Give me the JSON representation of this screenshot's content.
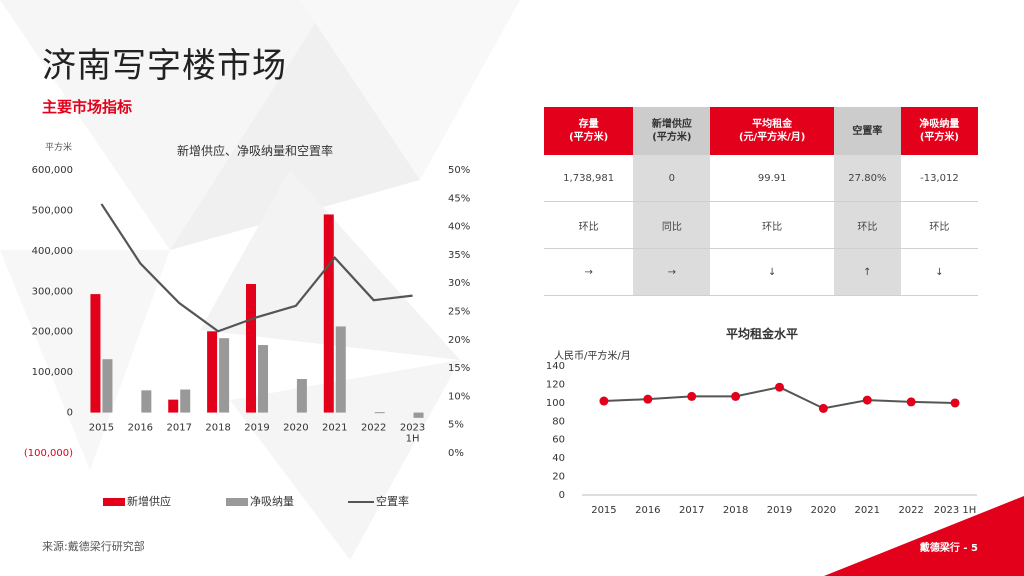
{
  "page": {
    "title": "济南写字楼市场",
    "subtitle": "主要市场指标",
    "source": "来源:戴德梁行研究部",
    "page_number": "戴德梁行 - 5"
  },
  "colors": {
    "accent": "#e2001a",
    "grey": "#999999",
    "line": "#555555",
    "header_grey": "#cccccc"
  },
  "kpi_table": {
    "headers": [
      {
        "label": "存量",
        "unit": "(平方米)",
        "style": "red"
      },
      {
        "label": "新增供应",
        "unit": "(平方米)",
        "style": "grey"
      },
      {
        "label": "平均租金",
        "unit": "(元/平方米/月)",
        "style": "red"
      },
      {
        "label": "空置率",
        "unit": "",
        "style": "grey"
      },
      {
        "label": "净吸纳量",
        "unit": "(平方米)",
        "style": "red"
      }
    ],
    "values": [
      "1,738,981",
      "0",
      "99.91",
      "27.80%",
      "-13,012"
    ],
    "comparisons": [
      "环比",
      "同比",
      "环比",
      "环比",
      "环比"
    ],
    "trends": [
      "→",
      "→",
      "↓",
      "↑",
      "↓"
    ]
  },
  "chart_data": [
    {
      "type": "bar",
      "title": "新增供应、净吸纳量和空置率",
      "ylabel": "平方米",
      "categories": [
        "2015",
        "2016",
        "2017",
        "2018",
        "2019",
        "2020",
        "2021",
        "2022",
        "2023 1H"
      ],
      "category_lines": [
        [
          "2015"
        ],
        [
          "2016"
        ],
        [
          "2017"
        ],
        [
          "2018"
        ],
        [
          "2019"
        ],
        [
          "2020"
        ],
        [
          "2021"
        ],
        [
          "2022"
        ],
        [
          "2023",
          "1H"
        ]
      ],
      "series": [
        {
          "name": "新增供应",
          "kind": "bar",
          "color": "#e2001a",
          "values": [
            293000,
            0,
            32000,
            201000,
            318000,
            0,
            490000,
            0,
            0
          ]
        },
        {
          "name": "净吸纳量",
          "kind": "bar",
          "color": "#999999",
          "values": [
            132000,
            55000,
            57000,
            184000,
            167000,
            83000,
            213000,
            1000,
            -13012
          ]
        },
        {
          "name": "空置率",
          "kind": "line",
          "axis": "right",
          "color": "#555555",
          "values": [
            44,
            33.5,
            26.5,
            21.5,
            24,
            26,
            34.5,
            27,
            27.8
          ]
        }
      ],
      "ylim": [
        -100000,
        600000
      ],
      "y_ticks": [
        "600,000",
        "500,000",
        "400,000",
        "300,000",
        "200,000",
        "100,000",
        "0",
        "(100,000)"
      ],
      "y_tick_values": [
        600000,
        500000,
        400000,
        300000,
        200000,
        100000,
        0,
        -100000
      ],
      "y2lim": [
        0,
        50
      ],
      "y2_ticks": [
        "50%",
        "45%",
        "40%",
        "35%",
        "30%",
        "25%",
        "20%",
        "15%",
        "10%",
        "5%",
        "0%"
      ],
      "y2_tick_values": [
        50,
        45,
        40,
        35,
        30,
        25,
        20,
        15,
        10,
        5,
        0
      ],
      "legend": [
        "新增供应",
        "净吸纳量",
        "空置率"
      ]
    },
    {
      "type": "line",
      "title": "平均租金水平",
      "ylabel": "人民币/平方米/月",
      "x": [
        "2015",
        "2016",
        "2017",
        "2018",
        "2019",
        "2020",
        "2021",
        "2022",
        "2023 1H"
      ],
      "values": [
        102,
        104,
        107,
        107,
        117,
        94,
        103,
        101,
        99.91
      ],
      "ylim": [
        0,
        140
      ],
      "y_ticks": [
        "140",
        "120",
        "100",
        "80",
        "60",
        "40",
        "20",
        "0"
      ],
      "y_tick_values": [
        140,
        120,
        100,
        80,
        60,
        40,
        20,
        0
      ]
    }
  ]
}
